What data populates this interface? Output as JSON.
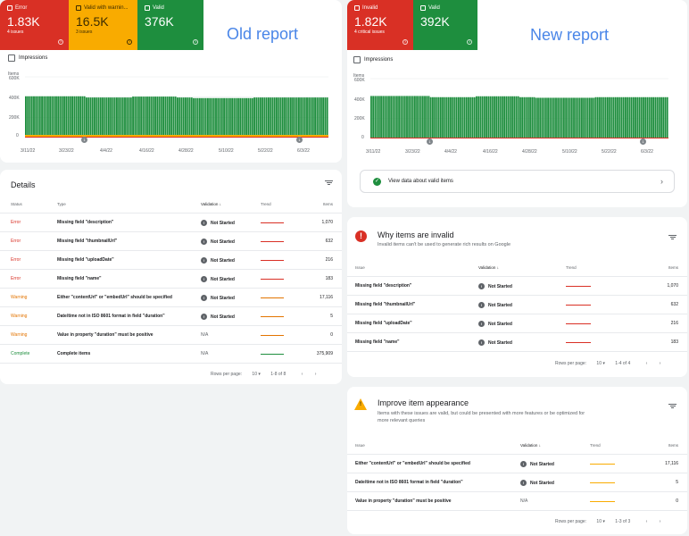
{
  "old_report": {
    "label": "Old report",
    "tiles": [
      {
        "title": "Error",
        "value": "1.83K",
        "sub": "4 issues",
        "color": "#d93025"
      },
      {
        "title": "Valid with warnin...",
        "value": "16.5K",
        "sub": "3 issues",
        "color": "#f9ab00"
      },
      {
        "title": "Valid",
        "value": "376K",
        "sub": "",
        "color": "#1e8e3e"
      }
    ],
    "impressions_label": "Impressions",
    "chart_ylabel": "Items",
    "chart_yticks": [
      "600K",
      "400K",
      "200K",
      "0"
    ],
    "chart_xticks": [
      "3/11/22",
      "3/23/22",
      "4/4/22",
      "4/16/22",
      "4/28/22",
      "5/10/22",
      "5/22/22",
      "6/3/22"
    ],
    "details_title": "Details",
    "columns": {
      "status": "Status",
      "type": "Type",
      "validation": "Validation",
      "trend": "Trend",
      "items": "Items"
    },
    "rows": [
      {
        "status": "Error",
        "type": "Missing field \"description\"",
        "validation": "Not Started",
        "items": "1,070",
        "color": "#d93025"
      },
      {
        "status": "Error",
        "type": "Missing field \"thumbnailUrl\"",
        "validation": "Not Started",
        "items": "632",
        "color": "#d93025"
      },
      {
        "status": "Error",
        "type": "Missing field \"uploadDate\"",
        "validation": "Not Started",
        "items": "216",
        "color": "#d93025"
      },
      {
        "status": "Error",
        "type": "Missing field \"name\"",
        "validation": "Not Started",
        "items": "183",
        "color": "#d93025"
      },
      {
        "status": "Warning",
        "type": "Either \"contentUrl\" or \"embedUrl\" should be specified",
        "validation": "Not Started",
        "items": "17,116",
        "color": "#e37400"
      },
      {
        "status": "Warning",
        "type": "Date/time not in ISO 8601 format in field \"duration\"",
        "validation": "Not Started",
        "items": "5",
        "color": "#e37400"
      },
      {
        "status": "Warning",
        "type": "Value in property \"duration\" must be positive",
        "validation": "N/A",
        "items": "0",
        "color": "#e37400"
      },
      {
        "status": "Complete",
        "type": "Complete items",
        "validation": "N/A",
        "items": "375,909",
        "color": "#1e8e3e"
      }
    ],
    "pagination": {
      "rows_label": "Rows per page:",
      "rows_value": "10",
      "range": "1-8 of 8"
    }
  },
  "new_report": {
    "label": "New report",
    "tiles": [
      {
        "title": "Invalid",
        "value": "1.82K",
        "sub": "4 critical issues",
        "color": "#d93025"
      },
      {
        "title": "Valid",
        "value": "392K",
        "sub": "",
        "color": "#1e8e3e"
      }
    ],
    "impressions_label": "Impressions",
    "chart_ylabel": "Items",
    "chart_yticks": [
      "600K",
      "400K",
      "200K",
      "0"
    ],
    "chart_xticks": [
      "3/11/22",
      "3/23/22",
      "4/4/22",
      "4/16/22",
      "4/28/22",
      "5/10/22",
      "5/22/22",
      "6/3/22"
    ],
    "valid_link": "View data about valid items",
    "invalid": {
      "title": "Why items are invalid",
      "subtitle": "Invalid items can't be used to generate rich results on Google",
      "columns": {
        "issue": "Issue",
        "validation": "Validation",
        "trend": "Trend",
        "items": "Items"
      },
      "rows": [
        {
          "issue": "Missing field \"description\"",
          "validation": "Not Started",
          "items": "1,070"
        },
        {
          "issue": "Missing field \"thumbnailUrl\"",
          "validation": "Not Started",
          "items": "632"
        },
        {
          "issue": "Missing field \"uploadDate\"",
          "validation": "Not Started",
          "items": "216"
        },
        {
          "issue": "Missing field \"name\"",
          "validation": "Not Started",
          "items": "183"
        }
      ],
      "pagination": {
        "rows_label": "Rows per page:",
        "rows_value": "10",
        "range": "1-4 of 4"
      }
    },
    "improve": {
      "title": "Improve item appearance",
      "subtitle": "Items with these issues are valid, but could be presented with more features or be optimized for more relevant queries",
      "columns": {
        "issue": "Issue",
        "validation": "Validation",
        "trend": "Trend",
        "items": "Items"
      },
      "rows": [
        {
          "issue": "Either \"contentUrl\" or \"embedUrl\" should be specified",
          "validation": "Not Started",
          "items": "17,116"
        },
        {
          "issue": "Date/time not in ISO 8601 format in field \"duration\"",
          "validation": "Not Started",
          "items": "5"
        },
        {
          "issue": "Value in property \"duration\" must be positive",
          "validation": "N/A",
          "items": "0"
        }
      ],
      "pagination": {
        "rows_label": "Rows per page:",
        "rows_value": "10",
        "range": "1-3 of 3"
      }
    }
  }
}
